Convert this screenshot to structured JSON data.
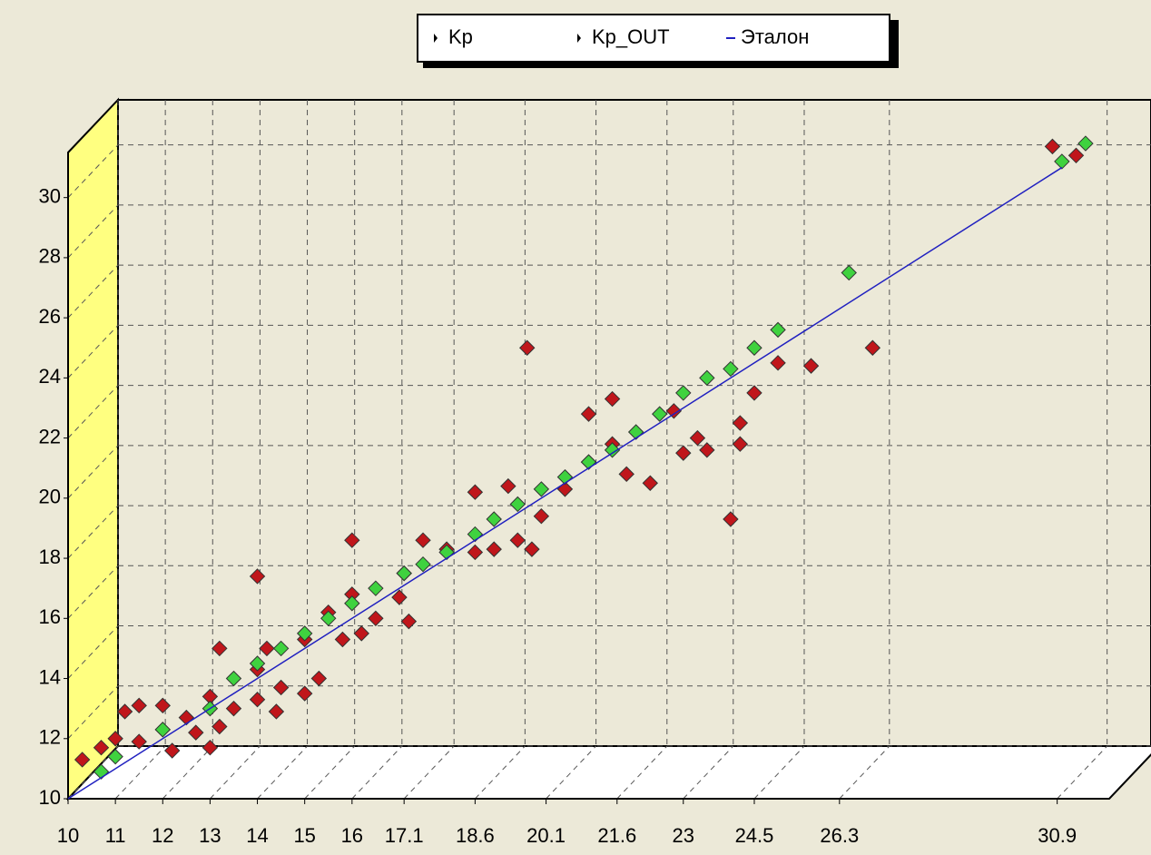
{
  "chart_data": {
    "type": "scatter",
    "series": [
      {
        "name": "Kp",
        "color": "#c0161b",
        "x": [
          10.3,
          10.7,
          11,
          11.2,
          11.5,
          11.5,
          12,
          12,
          12.2,
          12.5,
          12.7,
          13,
          13,
          13.2,
          13.2,
          13.5,
          14,
          14,
          14,
          14.2,
          14.4,
          14.5,
          15,
          15,
          15.3,
          15.5,
          15.8,
          16,
          16,
          16.2,
          16.5,
          17,
          17.1,
          17.2,
          17.5,
          18,
          18.6,
          18.6,
          19,
          19.3,
          19.5,
          19.7,
          19.8,
          20,
          20.5,
          21,
          21,
          21.5,
          21.5,
          21.8,
          22.3,
          22.8,
          23,
          23.3,
          23.5,
          24,
          24.2,
          24.2,
          24.5,
          25,
          25.7,
          27,
          30.8,
          31.3
        ],
        "y": [
          11.3,
          11.7,
          12,
          12.9,
          13.1,
          11.9,
          13.1,
          12.3,
          11.6,
          12.7,
          12.2,
          11.7,
          13.4,
          15,
          12.4,
          13,
          14.3,
          17.4,
          13.3,
          15,
          12.9,
          13.7,
          13.5,
          15.3,
          14,
          16.2,
          15.3,
          18.6,
          16.8,
          15.5,
          16,
          16.7,
          17.5,
          15.9,
          18.6,
          18.3,
          20.2,
          18.2,
          18.3,
          20.4,
          18.6,
          25,
          18.3,
          19.4,
          20.3,
          22.8,
          21.2,
          23.3,
          21.8,
          20.8,
          20.5,
          22.9,
          21.5,
          22,
          21.6,
          19.3,
          22.5,
          21.8,
          23.5,
          24.5,
          24.4,
          25,
          31.7,
          31.4
        ]
      },
      {
        "name": "Kp_OUT",
        "color": "#3fd23f",
        "x": [
          10.7,
          11,
          12,
          13,
          13.5,
          14,
          14.5,
          15,
          15.5,
          16,
          16.5,
          17.1,
          17.5,
          18,
          18.6,
          19,
          19.5,
          20,
          20.5,
          21,
          21.5,
          22,
          22.5,
          23,
          23.5,
          24,
          24.5,
          25,
          26.5,
          31,
          31.5
        ],
        "y": [
          10.9,
          11.4,
          12.3,
          13,
          14,
          14.5,
          15,
          15.5,
          16,
          16.5,
          17,
          17.5,
          17.8,
          18.2,
          18.8,
          19.3,
          19.8,
          20.3,
          20.7,
          21.2,
          21.6,
          22.2,
          22.8,
          23.5,
          24,
          24.3,
          25,
          25.6,
          27.5,
          31.2,
          31.8
        ]
      },
      {
        "name": "Эталон",
        "color": "#2020c0",
        "line": true,
        "x": [
          10,
          31
        ],
        "y": [
          10,
          31
        ]
      }
    ],
    "xlim": [
      10,
      32
    ],
    "ylim": [
      10,
      31.5
    ],
    "xticks": [
      10,
      11,
      12,
      13,
      14,
      15,
      16,
      17.1,
      18.6,
      20.1,
      21.6,
      23,
      24.5,
      26.3,
      30.9
    ],
    "yticks": [
      10,
      12,
      14,
      16,
      18,
      20,
      22,
      24,
      26,
      28,
      30
    ],
    "grid": true,
    "legend": "top"
  }
}
